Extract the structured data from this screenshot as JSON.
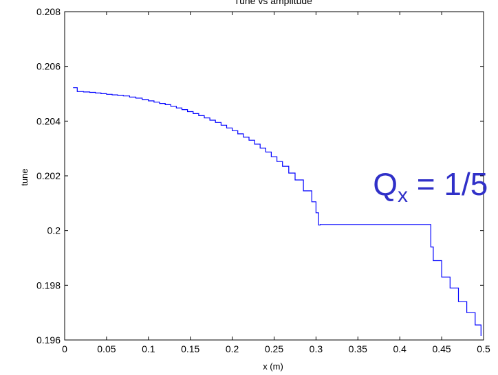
{
  "chart_data": {
    "type": "line",
    "title": "Tune vs amplitude",
    "xlabel": "x (m)",
    "ylabel": "tune",
    "xlim": [
      0,
      0.5
    ],
    "ylim": [
      0.196,
      0.208
    ],
    "xticks": [
      0,
      0.05,
      0.1,
      0.15,
      0.2,
      0.25,
      0.3,
      0.35,
      0.4,
      0.45,
      0.5
    ],
    "xtick_labels": [
      "0",
      "0.05",
      "0.1",
      "0.15",
      "0.2",
      "0.25",
      "0.3",
      "0.35",
      "0.4",
      "0.45",
      "0.5"
    ],
    "yticks": [
      0.196,
      0.198,
      0.2,
      0.202,
      0.204,
      0.206,
      0.208
    ],
    "ytick_labels": [
      "0.196",
      "0.198",
      "0.2",
      "0.202",
      "0.204",
      "0.206",
      "0.208"
    ],
    "grid": false,
    "line_color": "#0000ff",
    "series": [
      {
        "x": [
          0.01,
          0.015,
          0.03,
          0.05,
          0.07,
          0.085,
          0.1,
          0.12,
          0.14,
          0.16,
          0.18,
          0.2,
          0.22,
          0.24,
          0.26,
          0.275,
          0.285,
          0.295,
          0.3,
          0.303,
          0.305,
          0.32,
          0.36,
          0.4,
          0.436,
          0.437,
          0.44,
          0.45,
          0.46,
          0.47,
          0.48,
          0.49,
          0.497
        ],
        "y": [
          0.20522,
          0.20508,
          0.20505,
          0.20498,
          0.20492,
          0.20484,
          0.20474,
          0.2046,
          0.20442,
          0.2042,
          0.20395,
          0.20365,
          0.2033,
          0.20287,
          0.20235,
          0.20185,
          0.20145,
          0.20105,
          0.20065,
          0.2002,
          0.20022,
          0.20022,
          0.20022,
          0.20022,
          0.20022,
          0.1994,
          0.1989,
          0.1983,
          0.1979,
          0.1974,
          0.197,
          0.19655,
          0.19615
        ]
      }
    ],
    "annotation": {
      "text_main": "Q",
      "text_sub": "x",
      "text_rest": " = 1/5",
      "x": 0.368,
      "y": 0.2013,
      "color": "#3030c8"
    }
  }
}
